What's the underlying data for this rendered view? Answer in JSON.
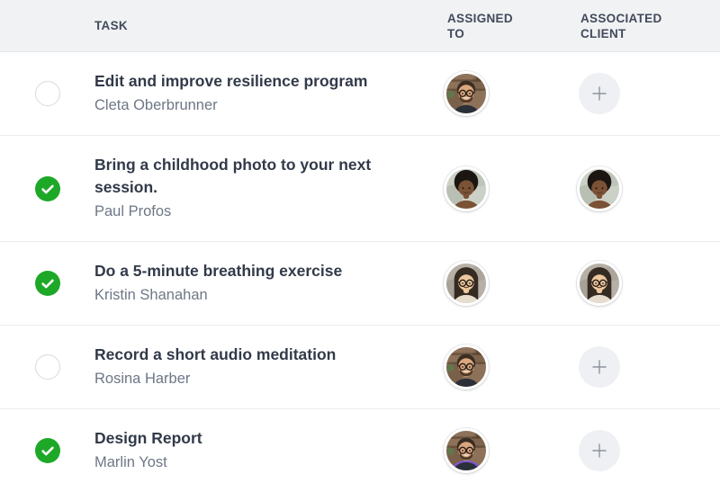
{
  "table": {
    "columns": [
      {
        "label": "TASK"
      },
      {
        "label": "ASSIGNED TO"
      },
      {
        "label": "ASSOCIATED CLIENT"
      }
    ],
    "rows": [
      {
        "title": "Edit and improve resilience program",
        "subtitle": "Cleta Oberbrunner",
        "completed": false,
        "assigned_avatar": "man-glasses",
        "client_avatar": null
      },
      {
        "title": "Bring a childhood photo to your next session.",
        "subtitle": "Paul Profos",
        "completed": true,
        "assigned_avatar": "woman-short-hair",
        "client_avatar": "woman-short-hair"
      },
      {
        "title": "Do a 5-minute breathing exercise",
        "subtitle": "Kristin Shanahan",
        "completed": true,
        "assigned_avatar": "woman-glasses",
        "client_avatar": "woman-glasses"
      },
      {
        "title": "Record a short audio meditation",
        "subtitle": "Rosina Harber",
        "completed": false,
        "assigned_avatar": "man-glasses",
        "client_avatar": null
      },
      {
        "title": "Design Report",
        "subtitle": "Marlin Yost",
        "completed": true,
        "assigned_avatar": "man-glasses-purple",
        "client_avatar": null
      }
    ]
  },
  "icons": {
    "completed": "check-icon",
    "add_client": "plus-icon"
  },
  "colors": {
    "completed_green": "#1ea828",
    "header_bg": "#f1f2f4",
    "title_text": "#323a49",
    "subtitle_text": "#6e7786",
    "divider": "#e9ebee",
    "checkbox_border": "#d6dae1",
    "plus_bg": "#eef0f3",
    "plus_glyph": "#8d949f"
  },
  "avatars": {
    "man-glasses": {
      "desc": "man with glasses and beard, wood-shelf background",
      "bg": "#8d7159",
      "bg2": "#6b523d",
      "hair": "#3a2d22",
      "skin": "#dca67e",
      "shirt": "#2b2f38",
      "beard": "#4e3827",
      "glasses": true,
      "style": "cap",
      "shelves": true
    },
    "woman-short-hair": {
      "desc": "woman with short natural hair, light background",
      "bg": "#ccd1c8",
      "bg2": "#a9b1a3",
      "hair": "#1c1612",
      "skin": "#7b5236",
      "shirt": "#7b5236",
      "beard": null,
      "glasses": false,
      "style": "afro",
      "shelves": false
    },
    "woman-glasses": {
      "desc": "woman with dark bob and round glasses",
      "bg": "#b7b0a7",
      "bg2": "#9d968c",
      "hair": "#352b22",
      "skin": "#eec79f",
      "shirt": "#e6ddcf",
      "beard": null,
      "glasses": true,
      "style": "bob",
      "shelves": false
    },
    "man-glasses-purple": {
      "desc": "man with glasses and beard, purple sweater edge",
      "bg": "#8d7159",
      "bg2": "#6b523d",
      "hair": "#3a2d22",
      "skin": "#dca67e",
      "shirt": "#2b2f38",
      "beard": "#4e3827",
      "glasses": true,
      "style": "cap",
      "shelves": true,
      "accent": "#7e57d9"
    }
  }
}
